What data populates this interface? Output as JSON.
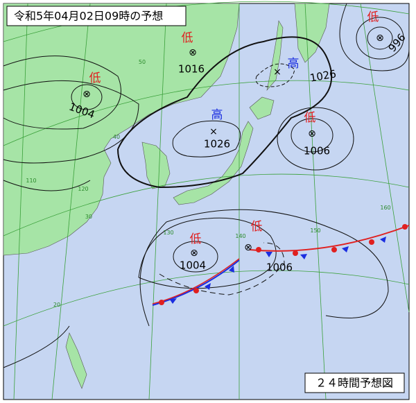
{
  "header": {
    "title": "令和5年04月02日09時の予想"
  },
  "footer": {
    "label": "２４時間予想図"
  },
  "systems": [
    {
      "kind": "低",
      "pressure": 1016
    },
    {
      "kind": "低",
      "pressure": 1004
    },
    {
      "kind": "高",
      "pressure": 1026
    },
    {
      "kind": "低",
      "pressure": 996
    },
    {
      "kind": "高",
      "pressure": 1026
    },
    {
      "kind": "低",
      "pressure": 1006
    },
    {
      "kind": "低",
      "pressure": 1004
    },
    {
      "kind": "低",
      "pressure": 1006
    }
  ],
  "grid_labels": [
    "50",
    "40",
    "30",
    "20",
    "110",
    "120",
    "130",
    "140",
    "150",
    "160"
  ]
}
